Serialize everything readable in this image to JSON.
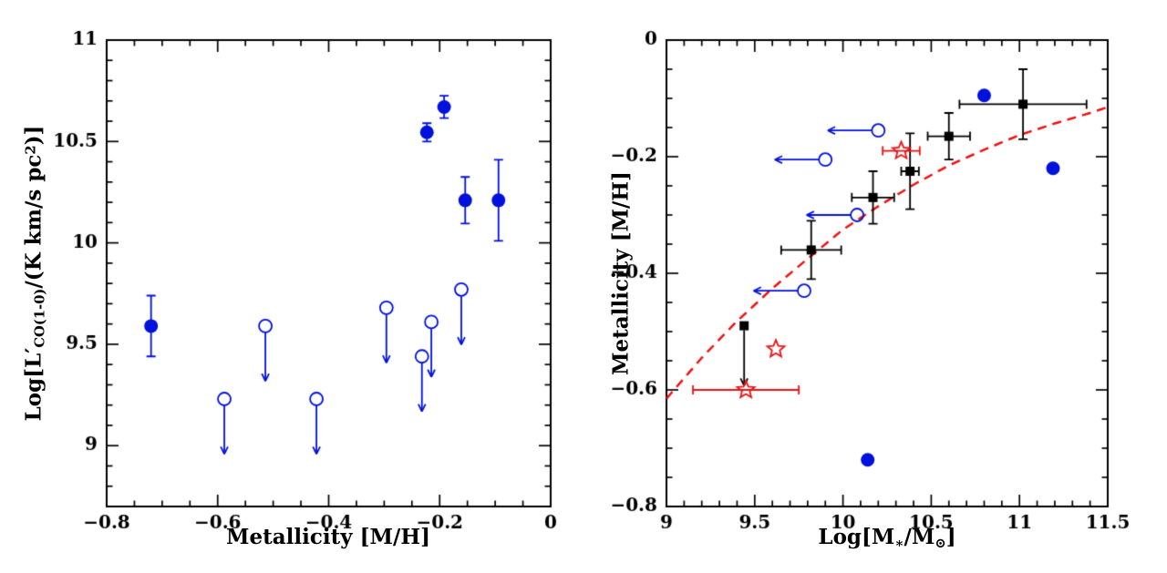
{
  "colors": {
    "blue": "#0011dd",
    "red": "#ee1111",
    "black": "#000000",
    "background": "#ffffff"
  },
  "labels": {
    "left_xlabel": "Metallicity [M/H]",
    "left_ylabel_parts": [
      {
        "t": "Log[L′",
        "s": "n"
      },
      {
        "t": "CO(1-0)",
        "s": "sub"
      },
      {
        "t": "/(K km/s pc",
        "s": "n"
      },
      {
        "t": "2",
        "s": "sup"
      },
      {
        "t": ")]",
        "s": "n"
      }
    ],
    "right_ylabel": "Metallicity [M/H]",
    "right_xlabel_parts": [
      {
        "t": "Log[M",
        "s": "n"
      },
      {
        "t": "∗",
        "s": "sub"
      },
      {
        "t": "/M",
        "s": "n"
      },
      {
        "t": "⊙",
        "s": "sub"
      },
      {
        "t": "]",
        "s": "n"
      }
    ]
  },
  "chart_data": [
    {
      "type": "scatter",
      "panel": "left",
      "title": "",
      "xlabel": "Metallicity [M/H]",
      "ylabel": "Log[L'_CO(1-0)/(K km/s pc^2)]",
      "xlim": [
        -0.8,
        0
      ],
      "ylim": [
        8.7,
        11
      ],
      "xticks": [
        -0.8,
        -0.6,
        -0.4,
        -0.2,
        0
      ],
      "xtick_labels": [
        "−0.8",
        "−0.6",
        "−0.4",
        "−0.2",
        "0"
      ],
      "yticks": [
        9,
        9.5,
        10,
        10.5,
        11
      ],
      "ytick_labels": [
        "9",
        "9.5",
        "10",
        "10.5",
        "11"
      ],
      "xminor": 0.05,
      "yminor": 0.1,
      "grid": false,
      "legend": false,
      "series": [
        {
          "name": "co-detections",
          "marker": "circle",
          "color": "blue",
          "size": 7.5,
          "points": [
            {
              "x": -0.72,
              "y": 9.59,
              "yerr": 0.15
            },
            {
              "x": -0.223,
              "y": 10.545,
              "yerr": 0.045
            },
            {
              "x": -0.192,
              "y": 10.67,
              "yerr": 0.055
            },
            {
              "x": -0.154,
              "y": 10.21,
              "yerr": 0.115
            },
            {
              "x": -0.094,
              "y": 10.21,
              "yerr": 0.2
            }
          ]
        },
        {
          "name": "co-upper-limits",
          "marker": "circle-downlim",
          "color": "blue",
          "size": 7,
          "arrow": 0.24,
          "points": [
            {
              "x": -0.588,
              "y": 9.23
            },
            {
              "x": -0.514,
              "y": 9.59
            },
            {
              "x": -0.422,
              "y": 9.23
            },
            {
              "x": -0.296,
              "y": 9.68
            },
            {
              "x": -0.232,
              "y": 9.44
            },
            {
              "x": -0.215,
              "y": 9.61
            },
            {
              "x": -0.161,
              "y": 9.77
            }
          ]
        }
      ]
    },
    {
      "type": "scatter",
      "panel": "right",
      "title": "",
      "xlabel": "Log[M*/Msun]",
      "ylabel": "Metallicity [M/H]",
      "xlim": [
        9,
        11.5
      ],
      "ylim": [
        -0.8,
        0
      ],
      "xticks": [
        9,
        9.5,
        10,
        10.5,
        11,
        11.5
      ],
      "xtick_labels": [
        "9",
        "9.5",
        "10",
        "10.5",
        "11",
        "11.5"
      ],
      "yticks": [
        0,
        -0.2,
        -0.4,
        -0.6,
        -0.8
      ],
      "ytick_labels": [
        "0",
        "−0.2",
        "−0.4",
        "−0.6",
        "−0.8"
      ],
      "xminor": 0.1,
      "yminor": 0.05,
      "grid": false,
      "legend": false,
      "series": [
        {
          "name": "mass-metallicity-relation-curve",
          "marker": "dashed-line",
          "color": "red",
          "points": [
            {
              "x": 9.0,
              "y": -0.615
            },
            {
              "x": 9.2,
              "y": -0.545
            },
            {
              "x": 9.4,
              "y": -0.482
            },
            {
              "x": 9.6,
              "y": -0.426
            },
            {
              "x": 9.8,
              "y": -0.375
            },
            {
              "x": 10.0,
              "y": -0.325
            },
            {
              "x": 10.2,
              "y": -0.285
            },
            {
              "x": 10.4,
              "y": -0.248
            },
            {
              "x": 10.6,
              "y": -0.215
            },
            {
              "x": 10.8,
              "y": -0.188
            },
            {
              "x": 11.0,
              "y": -0.163
            },
            {
              "x": 11.2,
              "y": -0.143
            },
            {
              "x": 11.4,
              "y": -0.125
            },
            {
              "x": 11.5,
              "y": -0.115
            }
          ]
        },
        {
          "name": "stacked-bins",
          "marker": "square",
          "color": "black",
          "size": 5,
          "points": [
            {
              "x": 9.82,
              "y": -0.36,
              "xerr": 0.17,
              "yerr": 0.05
            },
            {
              "x": 10.17,
              "y": -0.27,
              "xerr": 0.12,
              "yerr": 0.045
            },
            {
              "x": 10.38,
              "y": -0.225,
              "xerr": 0.05,
              "yerr": 0.065
            },
            {
              "x": 10.6,
              "y": -0.165,
              "xerr": 0.12,
              "yerr": 0.04
            },
            {
              "x": 11.02,
              "y": -0.11,
              "xerr": 0.36,
              "yerr": 0.06
            }
          ]
        },
        {
          "name": "stack-upper-limit",
          "marker": "square-downlim",
          "color": "black",
          "size": 5,
          "arrow": 0.095,
          "points": [
            {
              "x": 9.44,
              "y": -0.49
            }
          ]
        },
        {
          "name": "mass-upper-limits",
          "marker": "circle-leftlim",
          "color": "blue",
          "size": 7,
          "arrow": 0.25,
          "points": [
            {
              "x": 10.2,
              "y": -0.155
            },
            {
              "x": 9.9,
              "y": -0.205
            },
            {
              "x": 10.08,
              "y": -0.3
            },
            {
              "x": 9.78,
              "y": -0.43
            }
          ]
        },
        {
          "name": "individual-detections",
          "marker": "circle",
          "color": "blue",
          "size": 7.5,
          "points": [
            {
              "x": 10.8,
              "y": -0.095
            },
            {
              "x": 11.19,
              "y": -0.22
            },
            {
              "x": 10.14,
              "y": -0.72
            }
          ]
        },
        {
          "name": "red-star-galaxies",
          "marker": "star",
          "color": "red",
          "size": 10,
          "points": [
            {
              "x": 10.33,
              "y": -0.19,
              "xerr": 0.105
            },
            {
              "x": 9.62,
              "y": -0.53
            },
            {
              "x": 9.45,
              "y": -0.6,
              "xerr": 0.3
            }
          ]
        }
      ]
    }
  ]
}
